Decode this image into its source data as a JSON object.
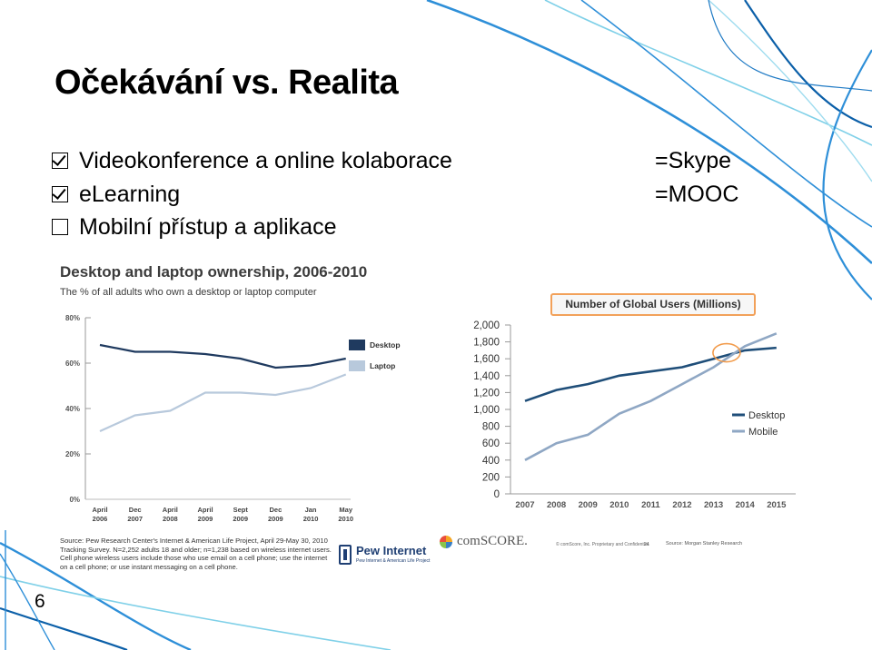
{
  "slide": {
    "title": "Očekávání vs. Realita",
    "page_number": "6",
    "bullets": [
      {
        "text": "Videokonference a online kolaborace",
        "checked": true,
        "equivalent": "=Skype"
      },
      {
        "text": "eLearning",
        "checked": true,
        "equivalent": "=MOOC"
      },
      {
        "text": "Mobilní přístup a aplikace",
        "checked": false,
        "equivalent": ""
      }
    ]
  },
  "chart_data": [
    {
      "type": "line",
      "title": "Desktop and laptop ownership, 2006-2010",
      "subtitle": "The % of all adults who own a desktop or laptop computer",
      "categories": [
        "April 2006",
        "Dec 2007",
        "April 2008",
        "April 2009",
        "Sept 2009",
        "Dec 2009",
        "Jan 2010",
        "May 2010"
      ],
      "series": [
        {
          "name": "Desktop",
          "color": "#1f3a5f",
          "values": [
            68,
            65,
            65,
            64,
            62,
            58,
            59,
            62
          ]
        },
        {
          "name": "Laptop",
          "color": "#b8c9dc",
          "values": [
            30,
            37,
            39,
            47,
            47,
            46,
            49,
            55
          ]
        }
      ],
      "yticks": [
        "0%",
        "20%",
        "40%",
        "60%",
        "80%"
      ],
      "ylim": [
        0,
        80
      ],
      "legend": "right",
      "source": "Source: Pew Research Center's Internet & American Life Project, April 29-May 30, 2010 Tracking Survey. N=2,252 adults 18 and older; n=1,238 based on wireless internet users. Cell phone wireless users include those who use email on a cell phone; use the internet on a cell phone; or use instant messaging on a cell phone.",
      "logo": {
        "name": "Pew Internet",
        "tagline": "Pew Internet & American Life Project"
      }
    },
    {
      "type": "line",
      "title": "Number of Global Users (Millions)",
      "categories": [
        "2007",
        "2008",
        "2009",
        "2010",
        "2011",
        "2012",
        "2013",
        "2014",
        "2015"
      ],
      "series": [
        {
          "name": "Desktop",
          "color": "#1f4e79",
          "values": [
            1100,
            1230,
            1300,
            1400,
            1450,
            1500,
            1600,
            1700,
            1730
          ]
        },
        {
          "name": "Mobile",
          "color": "#8fa7c4",
          "values": [
            400,
            600,
            700,
            950,
            1100,
            1300,
            1500,
            1750,
            1900
          ]
        }
      ],
      "yticks": [
        "0",
        "200",
        "400",
        "600",
        "800",
        "1,000",
        "1,200",
        "1,400",
        "1,600",
        "1,800",
        "2,000"
      ],
      "ylim": [
        0,
        2000
      ],
      "legend": "right",
      "annotation": "crossover circled in orange near 2013-2014",
      "logo": {
        "name": "comSCORE."
      },
      "footer": "© comScore, Inc.   Proprietary and Confidential.",
      "page": "24",
      "source": "Source: Morgan Stanley Research"
    }
  ]
}
